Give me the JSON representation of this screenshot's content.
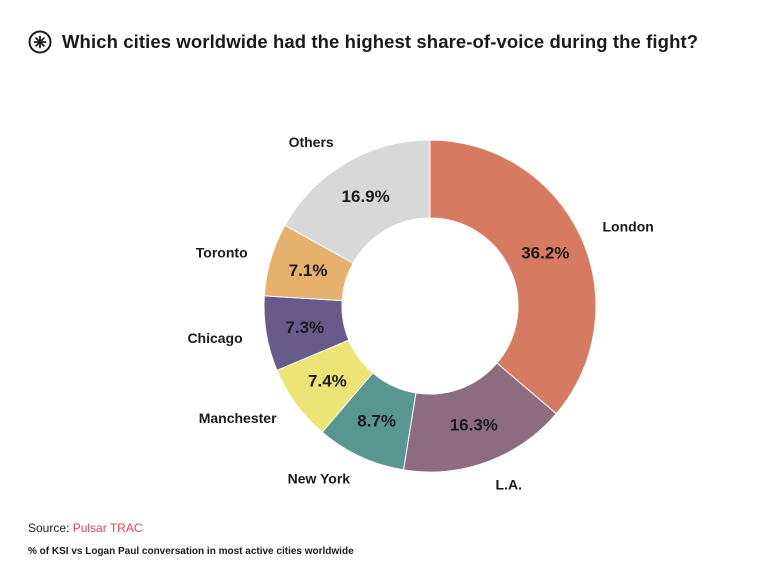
{
  "title": "Which cities worldwide had the highest share-of-voice during the fight?",
  "logo": {
    "icon": "pulsar-logo-icon"
  },
  "source": {
    "label": "Source:",
    "brand": "Pulsar TRAC",
    "brand_color": "#d64550"
  },
  "note": "% of KSI vs Logan Paul conversation in most active cities worldwide",
  "chart_data": {
    "type": "pie",
    "variant": "donut",
    "start_angle_deg": 0,
    "direction": "clockwise",
    "title": "Which cities worldwide had the highest share-of-voice during the fight?",
    "value_unit": "%",
    "slices": [
      {
        "label": "London",
        "value": 36.2,
        "display": "36.2%",
        "color": "#d67b62"
      },
      {
        "label": "L.A.",
        "value": 16.3,
        "display": "16.3%",
        "color": "#8c6c7e"
      },
      {
        "label": "New York",
        "value": 8.7,
        "display": "8.7%",
        "color": "#5a9690"
      },
      {
        "label": "Manchester",
        "value": 7.4,
        "display": "7.4%",
        "color": "#ece475"
      },
      {
        "label": "Chicago",
        "value": 7.3,
        "display": "7.3%",
        "color": "#685b8b"
      },
      {
        "label": "Toronto",
        "value": 7.1,
        "display": "7.1%",
        "color": "#e6b06d"
      },
      {
        "label": "Others",
        "value": 16.9,
        "display": "16.9%",
        "color": "#d8d8d8"
      }
    ]
  }
}
